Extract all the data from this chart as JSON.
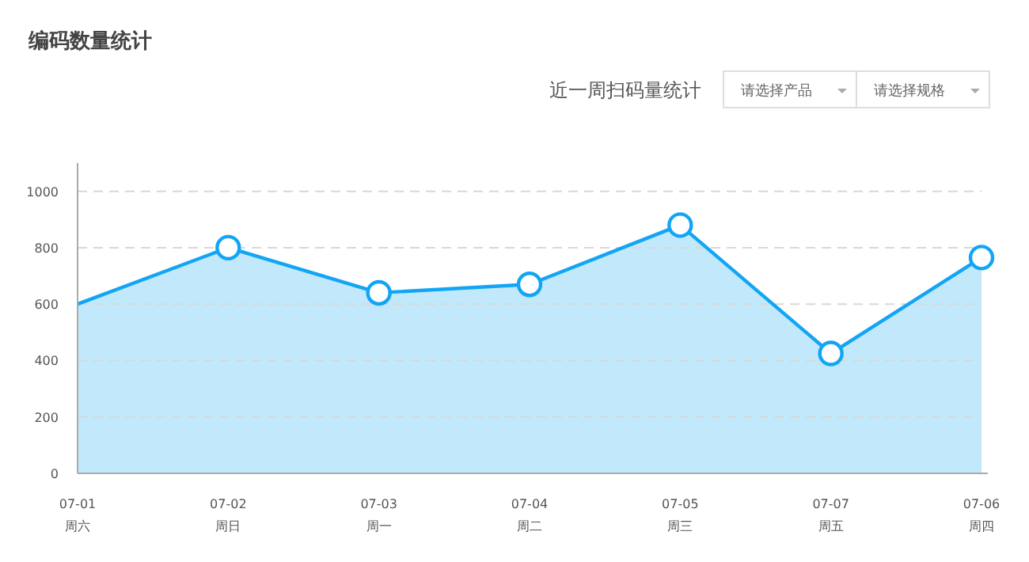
{
  "chart_data": {
    "type": "area",
    "title": "编码数量统计",
    "subtitle": "近一周扫码量统计",
    "annotations": [
      "请选择产品",
      "请选择规格"
    ],
    "categories": [
      "07-01\n周六",
      "07-02\n周日",
      "07-03\n周一",
      "07-04\n周二",
      "07-05\n周三",
      "07-07\n周五",
      "07-06\n周四"
    ],
    "series": [
      {
        "color": "#12a5f5",
        "values": [
          600,
          800,
          640,
          670,
          880,
          425,
          765
        ]
      }
    ],
    "ylim": [
      0,
      1100
    ],
    "yticks": [
      0,
      200,
      400,
      600,
      800,
      1000
    ],
    "grid": "y",
    "marker": "circle",
    "line_style": "solid"
  }
}
